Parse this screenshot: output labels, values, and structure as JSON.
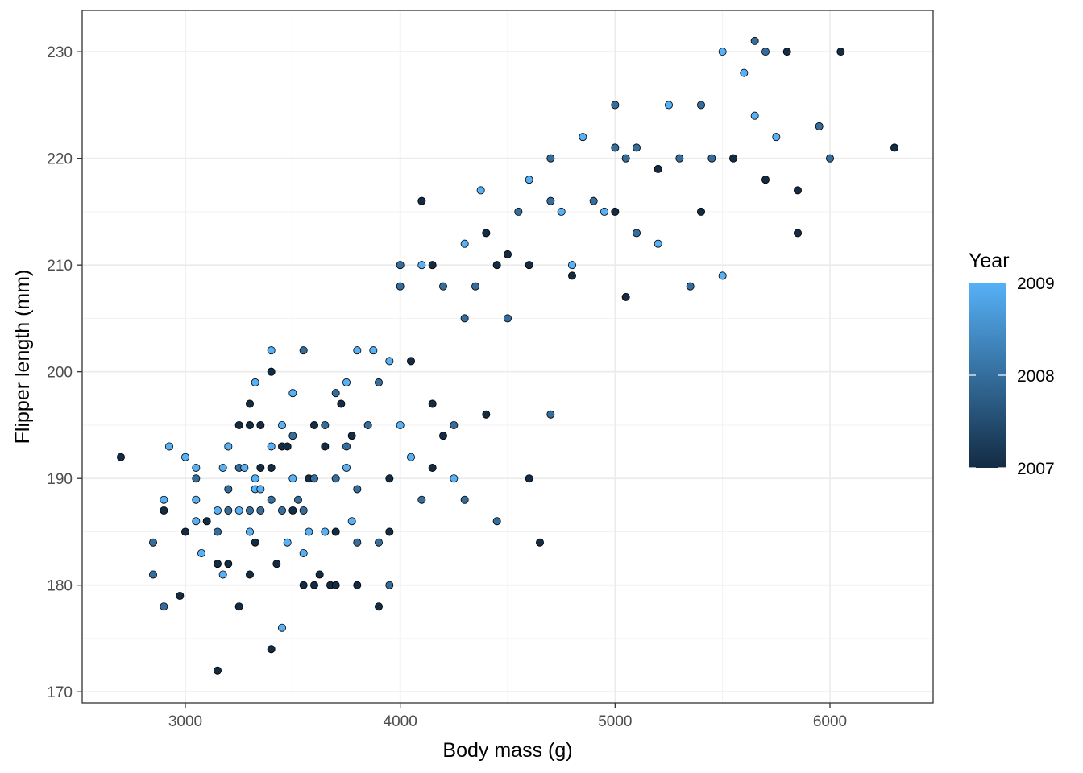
{
  "chart_data": {
    "type": "scatter",
    "title": "",
    "xlabel": "Body mass (g)",
    "ylabel": "Flipper length (mm)",
    "xlim": [
      2520,
      6480
    ],
    "ylim": [
      168.96,
      233.86
    ],
    "x_ticks": [
      3000,
      4000,
      5000,
      6000
    ],
    "y_ticks": [
      170,
      180,
      190,
      200,
      210,
      220,
      230
    ],
    "x_tick_labels": [
      "3000",
      "4000",
      "5000",
      "6000"
    ],
    "y_tick_labels": [
      "170",
      "180",
      "190",
      "200",
      "210",
      "220",
      "230"
    ],
    "grid": true,
    "theme": "bw",
    "legend": {
      "title": "Year",
      "position": "right",
      "type": "colorbar",
      "breaks": [
        2007,
        2008,
        2009
      ],
      "labels": [
        "2007",
        "2008",
        "2009"
      ],
      "low_color": "#132B43",
      "high_color": "#56B1F7"
    },
    "color_variable": "year",
    "points": [
      [
        2700,
        192,
        2007
      ],
      [
        2850,
        184,
        2008
      ],
      [
        2850,
        181,
        2008
      ],
      [
        2900,
        178,
        2008
      ],
      [
        2900,
        187,
        2007
      ],
      [
        2900,
        188,
        2009
      ],
      [
        2925,
        193,
        2009
      ],
      [
        2975,
        179,
        2007
      ],
      [
        3000,
        185,
        2007
      ],
      [
        3000,
        192,
        2009
      ],
      [
        3050,
        190,
        2008
      ],
      [
        3050,
        191,
        2009
      ],
      [
        3050,
        188,
        2009
      ],
      [
        3050,
        186,
        2009
      ],
      [
        3075,
        183,
        2009
      ],
      [
        3100,
        186,
        2007
      ],
      [
        3150,
        182,
        2007
      ],
      [
        3150,
        185,
        2008
      ],
      [
        3150,
        187,
        2009
      ],
      [
        3150,
        172,
        2007
      ],
      [
        3175,
        181,
        2009
      ],
      [
        3175,
        191,
        2009
      ],
      [
        3200,
        189,
        2008
      ],
      [
        3200,
        193,
        2009
      ],
      [
        3200,
        187,
        2008
      ],
      [
        3200,
        182,
        2007
      ],
      [
        3250,
        195,
        2007
      ],
      [
        3250,
        187,
        2009
      ],
      [
        3250,
        191,
        2008
      ],
      [
        3250,
        178,
        2007
      ],
      [
        3275,
        191,
        2009
      ],
      [
        3300,
        197,
        2007
      ],
      [
        3300,
        195,
        2007
      ],
      [
        3300,
        187,
        2008
      ],
      [
        3300,
        185,
        2009
      ],
      [
        3300,
        181,
        2007
      ],
      [
        3325,
        184,
        2007
      ],
      [
        3325,
        190,
        2009
      ],
      [
        3325,
        189,
        2009
      ],
      [
        3325,
        199,
        2009
      ],
      [
        3350,
        187,
        2008
      ],
      [
        3350,
        191,
        2007
      ],
      [
        3350,
        195,
        2007
      ],
      [
        3350,
        189,
        2009
      ],
      [
        3400,
        200,
        2007
      ],
      [
        3400,
        193,
        2009
      ],
      [
        3400,
        202,
        2009
      ],
      [
        3400,
        191,
        2007
      ],
      [
        3400,
        188,
        2008
      ],
      [
        3400,
        174,
        2007
      ],
      [
        3425,
        182,
        2007
      ],
      [
        3450,
        193,
        2007
      ],
      [
        3450,
        195,
        2009
      ],
      [
        3450,
        176,
        2009
      ],
      [
        3450,
        187,
        2008
      ],
      [
        3475,
        184,
        2009
      ],
      [
        3475,
        193,
        2007
      ],
      [
        3500,
        190,
        2009
      ],
      [
        3500,
        198,
        2009
      ],
      [
        3500,
        187,
        2007
      ],
      [
        3500,
        194,
        2008
      ],
      [
        3525,
        188,
        2008
      ],
      [
        3550,
        202,
        2008
      ],
      [
        3550,
        187,
        2008
      ],
      [
        3550,
        180,
        2007
      ],
      [
        3550,
        183,
        2009
      ],
      [
        3575,
        185,
        2009
      ],
      [
        3575,
        190,
        2007
      ],
      [
        3600,
        195,
        2007
      ],
      [
        3600,
        180,
        2007
      ],
      [
        3600,
        190,
        2008
      ],
      [
        3625,
        181,
        2007
      ],
      [
        3650,
        195,
        2008
      ],
      [
        3650,
        185,
        2009
      ],
      [
        3650,
        193,
        2007
      ],
      [
        3675,
        180,
        2007
      ],
      [
        3700,
        198,
        2008
      ],
      [
        3700,
        190,
        2008
      ],
      [
        3700,
        185,
        2007
      ],
      [
        3700,
        180,
        2007
      ],
      [
        3725,
        197,
        2007
      ],
      [
        3750,
        199,
        2009
      ],
      [
        3750,
        193,
        2008
      ],
      [
        3750,
        191,
        2009
      ],
      [
        3775,
        194,
        2007
      ],
      [
        3775,
        186,
        2009
      ],
      [
        3800,
        189,
        2008
      ],
      [
        3800,
        184,
        2008
      ],
      [
        3800,
        202,
        2009
      ],
      [
        3800,
        180,
        2007
      ],
      [
        3850,
        195,
        2008
      ],
      [
        3875,
        202,
        2009
      ],
      [
        3900,
        199,
        2008
      ],
      [
        3900,
        184,
        2008
      ],
      [
        3900,
        178,
        2007
      ],
      [
        3950,
        201,
        2009
      ],
      [
        3950,
        180,
        2008
      ],
      [
        3950,
        190,
        2007
      ],
      [
        3950,
        185,
        2007
      ],
      [
        4000,
        210,
        2008
      ],
      [
        4000,
        208,
        2008
      ],
      [
        4000,
        195,
        2009
      ],
      [
        4050,
        192,
        2009
      ],
      [
        4050,
        201,
        2007
      ],
      [
        4100,
        216,
        2007
      ],
      [
        4100,
        210,
        2009
      ],
      [
        4100,
        188,
        2008
      ],
      [
        4150,
        210,
        2007
      ],
      [
        4150,
        197,
        2007
      ],
      [
        4150,
        191,
        2007
      ],
      [
        4200,
        194,
        2007
      ],
      [
        4200,
        208,
        2008
      ],
      [
        4250,
        195,
        2008
      ],
      [
        4250,
        190,
        2009
      ],
      [
        4300,
        212,
        2009
      ],
      [
        4300,
        205,
        2008
      ],
      [
        4300,
        188,
        2008
      ],
      [
        4350,
        208,
        2008
      ],
      [
        4375,
        217,
        2009
      ],
      [
        4400,
        213,
        2007
      ],
      [
        4400,
        196,
        2007
      ],
      [
        4450,
        210,
        2007
      ],
      [
        4450,
        186,
        2008
      ],
      [
        4500,
        211,
        2007
      ],
      [
        4500,
        205,
        2008
      ],
      [
        4550,
        215,
        2008
      ],
      [
        4600,
        210,
        2007
      ],
      [
        4600,
        190,
        2007
      ],
      [
        4600,
        218,
        2009
      ],
      [
        4650,
        184,
        2007
      ],
      [
        4700,
        216,
        2008
      ],
      [
        4700,
        220,
        2008
      ],
      [
        4700,
        196,
        2008
      ],
      [
        4750,
        215,
        2009
      ],
      [
        4800,
        210,
        2009
      ],
      [
        4800,
        209,
        2007
      ],
      [
        4850,
        222,
        2009
      ],
      [
        4900,
        216,
        2008
      ],
      [
        4950,
        215,
        2009
      ],
      [
        5000,
        225,
        2008
      ],
      [
        5000,
        221,
        2008
      ],
      [
        5000,
        215,
        2007
      ],
      [
        5050,
        220,
        2008
      ],
      [
        5050,
        207,
        2007
      ],
      [
        5100,
        213,
        2008
      ],
      [
        5100,
        221,
        2008
      ],
      [
        5200,
        219,
        2007
      ],
      [
        5200,
        212,
        2009
      ],
      [
        5250,
        225,
        2009
      ],
      [
        5300,
        220,
        2008
      ],
      [
        5350,
        208,
        2008
      ],
      [
        5400,
        225,
        2008
      ],
      [
        5400,
        215,
        2007
      ],
      [
        5450,
        220,
        2008
      ],
      [
        5500,
        230,
        2009
      ],
      [
        5500,
        209,
        2009
      ],
      [
        5550,
        220,
        2007
      ],
      [
        5600,
        228,
        2009
      ],
      [
        5650,
        224,
        2009
      ],
      [
        5650,
        231,
        2008
      ],
      [
        5700,
        218,
        2007
      ],
      [
        5700,
        230,
        2008
      ],
      [
        5750,
        222,
        2009
      ],
      [
        5800,
        230,
        2007
      ],
      [
        5850,
        217,
        2007
      ],
      [
        5850,
        213,
        2007
      ],
      [
        5950,
        223,
        2008
      ],
      [
        6000,
        220,
        2008
      ],
      [
        6050,
        230,
        2007
      ],
      [
        6300,
        221,
        2007
      ]
    ]
  }
}
